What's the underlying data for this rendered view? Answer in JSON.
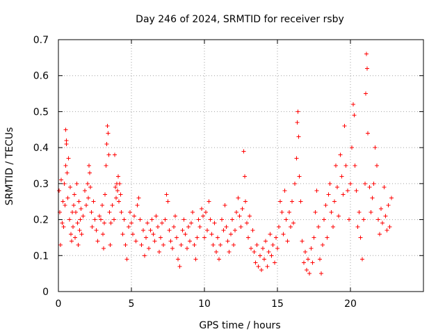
{
  "chart_data": {
    "type": "scatter",
    "title": "Day 246 of 2024, SRMTID for receiver rsby",
    "xlabel": "GPS time / hours",
    "ylabel": "SRMTID / TECUs",
    "xlim": [
      0,
      25
    ],
    "ylim": [
      0,
      0.7
    ],
    "x_ticks": [
      0,
      5,
      10,
      15,
      20
    ],
    "x_tick_labels": [
      "0",
      "5",
      "10",
      "15",
      "20"
    ],
    "y_ticks": [
      0,
      0.1,
      0.2,
      0.3,
      0.4,
      0.5,
      0.6,
      0.7
    ],
    "y_tick_labels": [
      "0",
      "0.1",
      "0.2",
      "0.3",
      "0.4",
      "0.5",
      "0.6",
      "0.7"
    ],
    "grid": true,
    "legend": "none",
    "marker": "plus",
    "color": "#ff0000",
    "series": [
      {
        "name": "SRMTID",
        "points": [
          [
            0.05,
            0.28
          ],
          [
            0.1,
            0.22
          ],
          [
            0.15,
            0.13
          ],
          [
            0.2,
            0.31
          ],
          [
            0.25,
            0.19
          ],
          [
            0.3,
            0.25
          ],
          [
            0.35,
            0.18
          ],
          [
            0.4,
            0.3
          ],
          [
            0.45,
            0.24
          ],
          [
            0.5,
            0.35
          ],
          [
            0.5,
            0.45
          ],
          [
            0.55,
            0.42
          ],
          [
            0.55,
            0.41
          ],
          [
            0.6,
            0.33
          ],
          [
            0.65,
            0.26
          ],
          [
            0.7,
            0.37
          ],
          [
            0.75,
            0.2
          ],
          [
            0.8,
            0.29
          ],
          [
            0.85,
            0.16
          ],
          [
            0.9,
            0.14
          ],
          [
            0.95,
            0.22
          ],
          [
            1.0,
            0.18
          ],
          [
            1.05,
            0.24
          ],
          [
            1.1,
            0.27
          ],
          [
            1.15,
            0.15
          ],
          [
            1.2,
            0.22
          ],
          [
            1.25,
            0.3
          ],
          [
            1.3,
            0.19
          ],
          [
            1.35,
            0.13
          ],
          [
            1.4,
            0.25
          ],
          [
            1.45,
            0.17
          ],
          [
            1.5,
            0.2
          ],
          [
            1.55,
            0.23
          ],
          [
            1.6,
            0.16
          ],
          [
            1.7,
            0.21
          ],
          [
            1.8,
            0.28
          ],
          [
            1.9,
            0.24
          ],
          [
            2.0,
            0.3
          ],
          [
            2.05,
            0.26
          ],
          [
            2.1,
            0.35
          ],
          [
            2.15,
            0.33
          ],
          [
            2.2,
            0.29
          ],
          [
            2.25,
            0.22
          ],
          [
            2.3,
            0.18
          ],
          [
            2.4,
            0.25
          ],
          [
            2.5,
            0.2
          ],
          [
            2.6,
            0.17
          ],
          [
            2.7,
            0.14
          ],
          [
            2.8,
            0.21
          ],
          [
            2.9,
            0.2
          ],
          [
            3.0,
            0.24
          ],
          [
            3.05,
            0.16
          ],
          [
            3.1,
            0.12
          ],
          [
            3.15,
            0.19
          ],
          [
            3.2,
            0.27
          ],
          [
            3.25,
            0.35
          ],
          [
            3.3,
            0.41
          ],
          [
            3.35,
            0.46
          ],
          [
            3.4,
            0.44
          ],
          [
            3.45,
            0.38
          ],
          [
            3.5,
            0.22
          ],
          [
            3.55,
            0.13
          ],
          [
            3.6,
            0.19
          ],
          [
            3.7,
            0.24
          ],
          [
            3.8,
            0.2
          ],
          [
            3.85,
            0.38
          ],
          [
            3.9,
            0.29
          ],
          [
            3.95,
            0.26
          ],
          [
            4.0,
            0.3
          ],
          [
            4.05,
            0.28
          ],
          [
            4.1,
            0.32
          ],
          [
            4.15,
            0.25
          ],
          [
            4.2,
            0.3
          ],
          [
            4.25,
            0.27
          ],
          [
            4.3,
            0.22
          ],
          [
            4.4,
            0.16
          ],
          [
            4.5,
            0.2
          ],
          [
            4.6,
            0.13
          ],
          [
            4.7,
            0.09
          ],
          [
            4.8,
            0.18
          ],
          [
            4.9,
            0.22
          ],
          [
            5.0,
            0.19
          ],
          [
            5.1,
            0.16
          ],
          [
            5.2,
            0.21
          ],
          [
            5.3,
            0.14
          ],
          [
            5.4,
            0.24
          ],
          [
            5.5,
            0.26
          ],
          [
            5.6,
            0.2
          ],
          [
            5.7,
            0.13
          ],
          [
            5.8,
            0.17
          ],
          [
            5.9,
            0.1
          ],
          [
            6.0,
            0.15
          ],
          [
            6.1,
            0.19
          ],
          [
            6.2,
            0.12
          ],
          [
            6.3,
            0.17
          ],
          [
            6.4,
            0.2
          ],
          [
            6.5,
            0.16
          ],
          [
            6.6,
            0.14
          ],
          [
            6.7,
            0.21
          ],
          [
            6.8,
            0.18
          ],
          [
            6.9,
            0.11
          ],
          [
            7.0,
            0.15
          ],
          [
            7.1,
            0.19
          ],
          [
            7.2,
            0.13
          ],
          [
            7.3,
            0.2
          ],
          [
            7.4,
            0.27
          ],
          [
            7.5,
            0.25
          ],
          [
            7.6,
            0.17
          ],
          [
            7.7,
            0.14
          ],
          [
            7.8,
            0.12
          ],
          [
            7.9,
            0.18
          ],
          [
            8.0,
            0.21
          ],
          [
            8.1,
            0.15
          ],
          [
            8.2,
            0.09
          ],
          [
            8.3,
            0.07
          ],
          [
            8.4,
            0.13
          ],
          [
            8.5,
            0.17
          ],
          [
            8.6,
            0.2
          ],
          [
            8.7,
            0.16
          ],
          [
            8.8,
            0.12
          ],
          [
            8.9,
            0.18
          ],
          [
            9.0,
            0.14
          ],
          [
            9.1,
            0.19
          ],
          [
            9.2,
            0.22
          ],
          [
            9.3,
            0.13
          ],
          [
            9.4,
            0.09
          ],
          [
            9.5,
            0.15
          ],
          [
            9.6,
            0.2
          ],
          [
            9.7,
            0.18
          ],
          [
            9.8,
            0.23
          ],
          [
            9.9,
            0.21
          ],
          [
            10.0,
            0.15
          ],
          [
            10.1,
            0.22
          ],
          [
            10.2,
            0.17
          ],
          [
            10.3,
            0.25
          ],
          [
            10.4,
            0.2
          ],
          [
            10.5,
            0.16
          ],
          [
            10.6,
            0.13
          ],
          [
            10.7,
            0.19
          ],
          [
            10.8,
            0.11
          ],
          [
            10.9,
            0.15
          ],
          [
            11.0,
            0.09
          ],
          [
            11.1,
            0.13
          ],
          [
            11.2,
            0.2
          ],
          [
            11.3,
            0.17
          ],
          [
            11.4,
            0.24
          ],
          [
            11.5,
            0.18
          ],
          [
            11.6,
            0.14
          ],
          [
            11.7,
            0.11
          ],
          [
            11.8,
            0.16
          ],
          [
            11.9,
            0.2
          ],
          [
            12.0,
            0.13
          ],
          [
            12.1,
            0.17
          ],
          [
            12.2,
            0.22
          ],
          [
            12.3,
            0.26
          ],
          [
            12.4,
            0.21
          ],
          [
            12.5,
            0.18
          ],
          [
            12.6,
            0.23
          ],
          [
            12.7,
            0.39
          ],
          [
            12.75,
            0.32
          ],
          [
            12.8,
            0.25
          ],
          [
            12.9,
            0.19
          ],
          [
            13.0,
            0.15
          ],
          [
            13.1,
            0.21
          ],
          [
            13.2,
            0.12
          ],
          [
            13.3,
            0.17
          ],
          [
            13.4,
            0.11
          ],
          [
            13.5,
            0.08
          ],
          [
            13.6,
            0.13
          ],
          [
            13.7,
            0.07
          ],
          [
            13.8,
            0.1
          ],
          [
            13.9,
            0.06
          ],
          [
            14.0,
            0.12
          ],
          [
            14.1,
            0.09
          ],
          [
            14.2,
            0.14
          ],
          [
            14.3,
            0.07
          ],
          [
            14.4,
            0.11
          ],
          [
            14.5,
            0.16
          ],
          [
            14.6,
            0.1
          ],
          [
            14.7,
            0.13
          ],
          [
            14.8,
            0.08
          ],
          [
            14.9,
            0.15
          ],
          [
            15.0,
            0.12
          ],
          [
            15.1,
            0.18
          ],
          [
            15.2,
            0.25
          ],
          [
            15.3,
            0.22
          ],
          [
            15.4,
            0.16
          ],
          [
            15.5,
            0.28
          ],
          [
            15.6,
            0.2
          ],
          [
            15.7,
            0.14
          ],
          [
            15.8,
            0.22
          ],
          [
            15.9,
            0.18
          ],
          [
            16.0,
            0.25
          ],
          [
            16.1,
            0.19
          ],
          [
            16.2,
            0.3
          ],
          [
            16.3,
            0.37
          ],
          [
            16.35,
            0.47
          ],
          [
            16.4,
            0.5
          ],
          [
            16.45,
            0.43
          ],
          [
            16.5,
            0.32
          ],
          [
            16.6,
            0.25
          ],
          [
            16.7,
            0.14
          ],
          [
            16.8,
            0.08
          ],
          [
            16.9,
            0.11
          ],
          [
            17.0,
            0.06
          ],
          [
            17.1,
            0.09
          ],
          [
            17.2,
            0.05
          ],
          [
            17.3,
            0.12
          ],
          [
            17.4,
            0.08
          ],
          [
            17.5,
            0.15
          ],
          [
            17.6,
            0.22
          ],
          [
            17.7,
            0.28
          ],
          [
            17.8,
            0.18
          ],
          [
            17.9,
            0.09
          ],
          [
            18.0,
            0.05
          ],
          [
            18.1,
            0.13
          ],
          [
            18.2,
            0.2
          ],
          [
            18.3,
            0.24
          ],
          [
            18.4,
            0.15
          ],
          [
            18.5,
            0.27
          ],
          [
            18.6,
            0.3
          ],
          [
            18.7,
            0.22
          ],
          [
            18.8,
            0.18
          ],
          [
            18.9,
            0.25
          ],
          [
            19.0,
            0.35
          ],
          [
            19.1,
            0.29
          ],
          [
            19.2,
            0.21
          ],
          [
            19.3,
            0.38
          ],
          [
            19.4,
            0.32
          ],
          [
            19.5,
            0.27
          ],
          [
            19.6,
            0.46
          ],
          [
            19.7,
            0.35
          ],
          [
            19.8,
            0.28
          ],
          [
            19.9,
            0.2
          ],
          [
            20.0,
            0.3
          ],
          [
            20.1,
            0.4
          ],
          [
            20.2,
            0.52
          ],
          [
            20.25,
            0.49
          ],
          [
            20.3,
            0.35
          ],
          [
            20.4,
            0.28
          ],
          [
            20.5,
            0.18
          ],
          [
            20.6,
            0.22
          ],
          [
            20.7,
            0.15
          ],
          [
            20.8,
            0.09
          ],
          [
            20.9,
            0.2
          ],
          [
            21.0,
            0.3
          ],
          [
            21.05,
            0.55
          ],
          [
            21.1,
            0.66
          ],
          [
            21.15,
            0.62
          ],
          [
            21.2,
            0.44
          ],
          [
            21.3,
            0.29
          ],
          [
            21.4,
            0.22
          ],
          [
            21.5,
            0.26
          ],
          [
            21.6,
            0.3
          ],
          [
            21.7,
            0.4
          ],
          [
            21.8,
            0.35
          ],
          [
            21.9,
            0.2
          ],
          [
            22.0,
            0.16
          ],
          [
            22.1,
            0.23
          ],
          [
            22.2,
            0.19
          ],
          [
            22.3,
            0.29
          ],
          [
            22.4,
            0.21
          ],
          [
            22.5,
            0.17
          ],
          [
            22.6,
            0.24
          ],
          [
            22.7,
            0.18
          ],
          [
            22.8,
            0.26
          ]
        ]
      }
    ]
  }
}
